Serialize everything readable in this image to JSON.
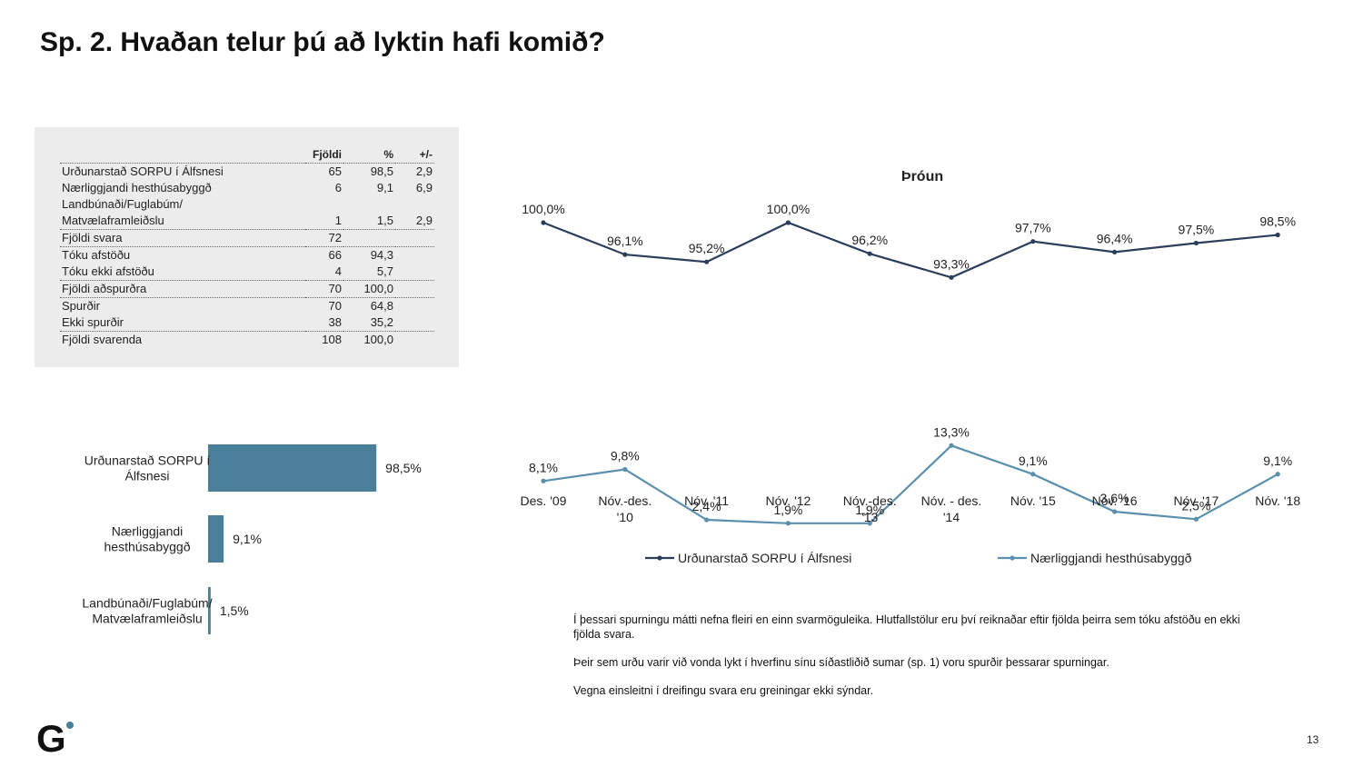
{
  "page": {
    "title": "Sp. 2. Hvaðan telur þú að lyktin hafi komið?",
    "page_number": "13"
  },
  "table": {
    "headers": [
      "",
      "Fjöldi",
      "%",
      "+/-"
    ],
    "rows": [
      {
        "label": "Urðunarstað SORPU í Álfsnesi",
        "n": "65",
        "pct": "98,5",
        "diff": "2,9",
        "sep": false
      },
      {
        "label": "Nærliggjandi hesthúsabyggð",
        "n": "6",
        "pct": "9,1",
        "diff": "6,9",
        "sep": false
      },
      {
        "label": "Landbúnaði/Fuglabúm/",
        "n": "",
        "pct": "",
        "diff": "",
        "sep": false
      },
      {
        "label": "Matvælaframleiðslu",
        "n": "1",
        "pct": "1,5",
        "diff": "2,9",
        "sep": true
      },
      {
        "label": "Fjöldi svara",
        "n": "72",
        "pct": "",
        "diff": "",
        "sep": true
      },
      {
        "label": "Tóku afstöðu",
        "n": "66",
        "pct": "94,3",
        "diff": "",
        "sep": false
      },
      {
        "label": "Tóku ekki afstöðu",
        "n": "4",
        "pct": "5,7",
        "diff": "",
        "sep": true
      },
      {
        "label": "Fjöldi aðspurðra",
        "n": "70",
        "pct": "100,0",
        "diff": "",
        "sep": true
      },
      {
        "label": "Spurðir",
        "n": "70",
        "pct": "64,8",
        "diff": "",
        "sep": false
      },
      {
        "label": "Ekki spurðir",
        "n": "38",
        "pct": "35,2",
        "diff": "",
        "sep": true
      },
      {
        "label": "Fjöldi svarenda",
        "n": "108",
        "pct": "100,0",
        "diff": "",
        "sep": false
      }
    ]
  },
  "chart_data": [
    {
      "type": "bar",
      "orientation": "horizontal",
      "categories": [
        [
          "Urðunarstað SORPU í",
          "Álfsnesi"
        ],
        [
          "Nærliggjandi",
          "hesthúsabyggð"
        ],
        [
          "Landbúnaði/Fuglabúm/",
          "Matvælaframleiðslu"
        ]
      ],
      "values": [
        98.5,
        9.1,
        1.5
      ],
      "data_labels": [
        "98,5%",
        "9,1%",
        "1,5%"
      ],
      "xlim": [
        0,
        100
      ],
      "color": "#4a7f99"
    },
    {
      "type": "line",
      "title": "Þróun",
      "categories": [
        [
          "Des. '09"
        ],
        [
          "Nóv.-des.",
          "'10"
        ],
        [
          "Nóv. '11"
        ],
        [
          "Nóv. '12"
        ],
        [
          "Nóv.-des.",
          "'13"
        ],
        [
          "Nóv. - des.",
          "'14"
        ],
        [
          "Nóv. '15"
        ],
        [
          "Nóv. '16"
        ],
        [
          "Nóv. '17"
        ],
        [
          "Nóv. '18"
        ]
      ],
      "series": [
        {
          "name": "Urðunarstað SORPU í Álfsnesi",
          "color": "#2b3f5c",
          "values": [
            100.0,
            96.1,
            95.2,
            100.0,
            96.2,
            93.3,
            97.7,
            96.4,
            97.5,
            98.5
          ],
          "labels": [
            "100,0%",
            "96,1%",
            "95,2%",
            "100,0%",
            "96,2%",
            "93,3%",
            "97,7%",
            "96,4%",
            "97,5%",
            "98,5%"
          ],
          "ylim": [
            80,
            110
          ]
        },
        {
          "name": "Nærliggjandi hesthúsabyggð",
          "color": "#5b8fae",
          "values": [
            8.1,
            9.8,
            2.4,
            1.9,
            1.9,
            13.3,
            9.1,
            3.6,
            2.5,
            9.1
          ],
          "labels": [
            "8,1%",
            "9,8%",
            "2,4%",
            "1,9%",
            "1,9%",
            "13,3%",
            "9,1%",
            "3,6%",
            "2,5%",
            "9,1%"
          ],
          "ylim": [
            0,
            20
          ]
        }
      ],
      "legend_position": "bottom"
    }
  ],
  "notes": [
    "Í þessari spurningu mátti nefna fleiri en einn svarmöguleika. Hlutfallstölur eru því reiknaðar eftir fjölda þeirra sem tóku afstöðu en ekki fjölda svara.",
    "Þeir sem urðu varir við vonda lykt í hverfinu sínu síðastliðið sumar (sp. 1) voru spurðir þessarar spurningar.",
    "Vegna einsleitni í dreifingu svara eru greiningar ekki sýndar."
  ],
  "logo": {
    "text": "G"
  }
}
